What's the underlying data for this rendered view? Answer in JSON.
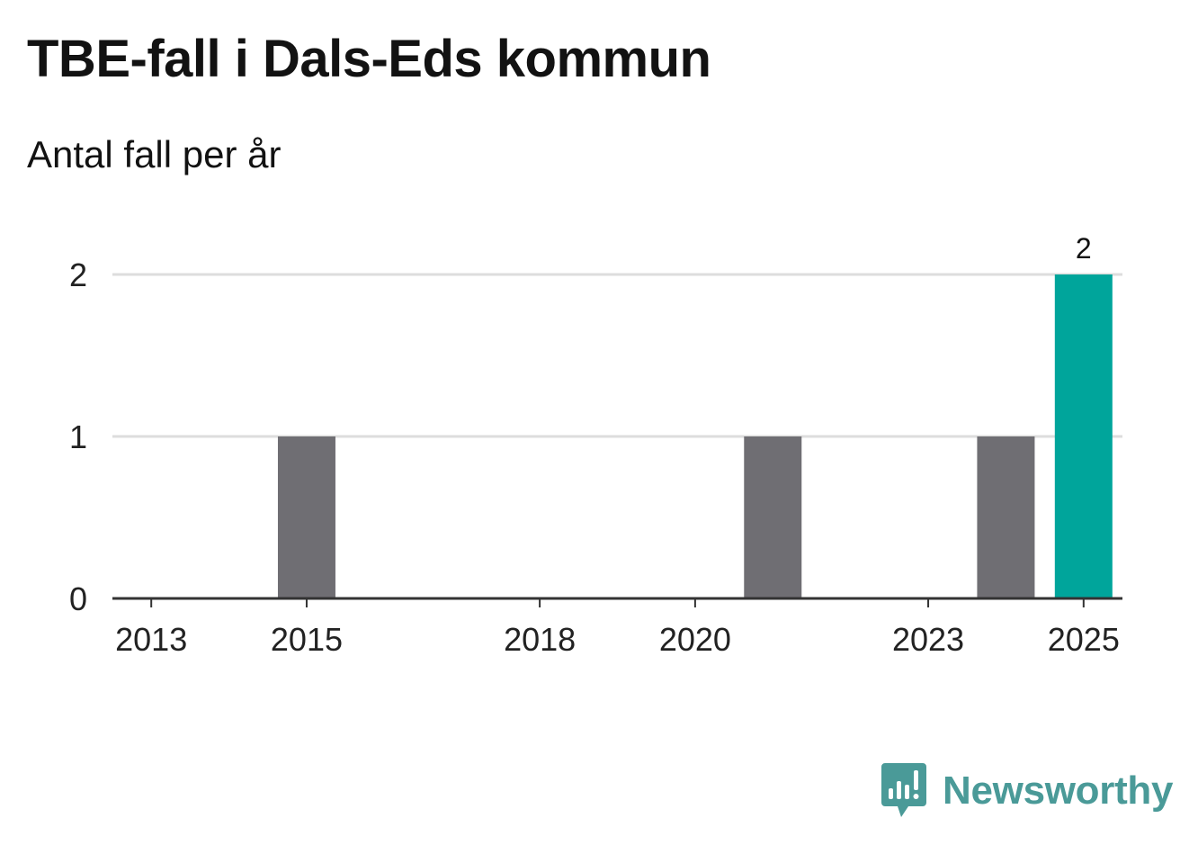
{
  "title": "TBE-fall i Dals-Eds kommun",
  "subtitle": "Antal fall per år",
  "brand": {
    "name": "Newsworthy",
    "icon": "newsworthy-logo-icon",
    "color": "#4a9a98"
  },
  "colors": {
    "bar_default": "#6f6e73",
    "bar_highlight": "#00a59b",
    "grid": "#dddddd",
    "axis": "#333333"
  },
  "chart_data": {
    "type": "bar",
    "title": "TBE-fall i Dals-Eds kommun",
    "subtitle": "Antal fall per år",
    "xlabel": "",
    "ylabel": "",
    "categories": [
      2013,
      2014,
      2015,
      2016,
      2017,
      2018,
      2019,
      2020,
      2021,
      2022,
      2023,
      2024,
      2025
    ],
    "values": [
      0,
      0,
      1,
      0,
      0,
      0,
      0,
      0,
      1,
      0,
      0,
      1,
      2
    ],
    "highlight": 2025,
    "data_labels": [
      {
        "category": 2025,
        "text": "2"
      }
    ],
    "ylim": [
      0,
      2
    ],
    "yticks": [
      0,
      1,
      2
    ],
    "xticks": [
      2013,
      2015,
      2018,
      2020,
      2023,
      2025
    ],
    "grid": true
  }
}
